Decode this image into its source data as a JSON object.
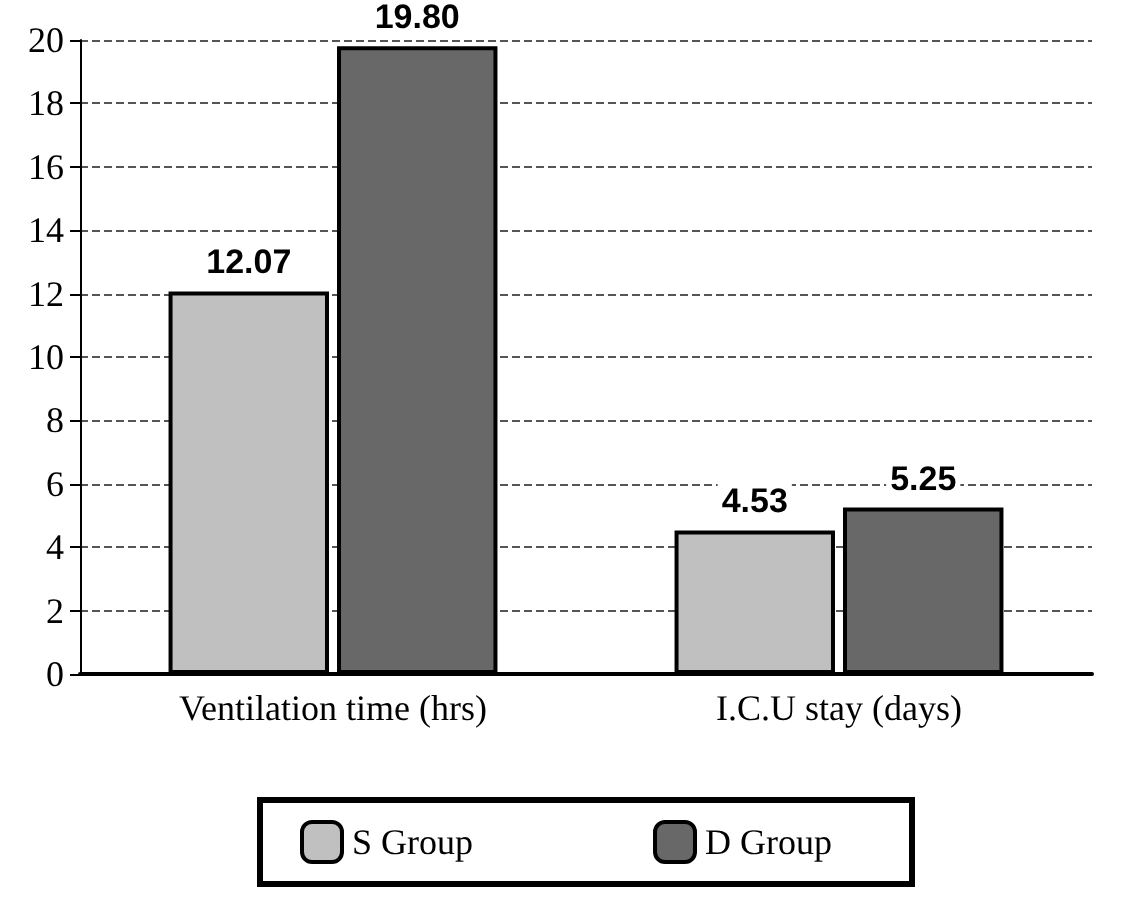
{
  "chart_data": {
    "type": "bar",
    "categories": [
      "Ventilation time (hrs)",
      "I.C.U stay (days)"
    ],
    "series": [
      {
        "name": "S Group",
        "color": "#c0c0c0",
        "values": [
          12.07,
          4.53
        ],
        "value_labels": [
          "12.07",
          "4.53"
        ]
      },
      {
        "name": "D Group",
        "color": "#686868",
        "values": [
          19.8,
          5.25
        ],
        "value_labels": [
          "19.80",
          "5.25"
        ]
      }
    ],
    "ylim": [
      0,
      20
    ],
    "yticks": [
      0,
      2,
      4,
      6,
      8,
      10,
      12,
      14,
      16,
      18,
      20
    ],
    "grid": "y",
    "legend": "bottom"
  }
}
